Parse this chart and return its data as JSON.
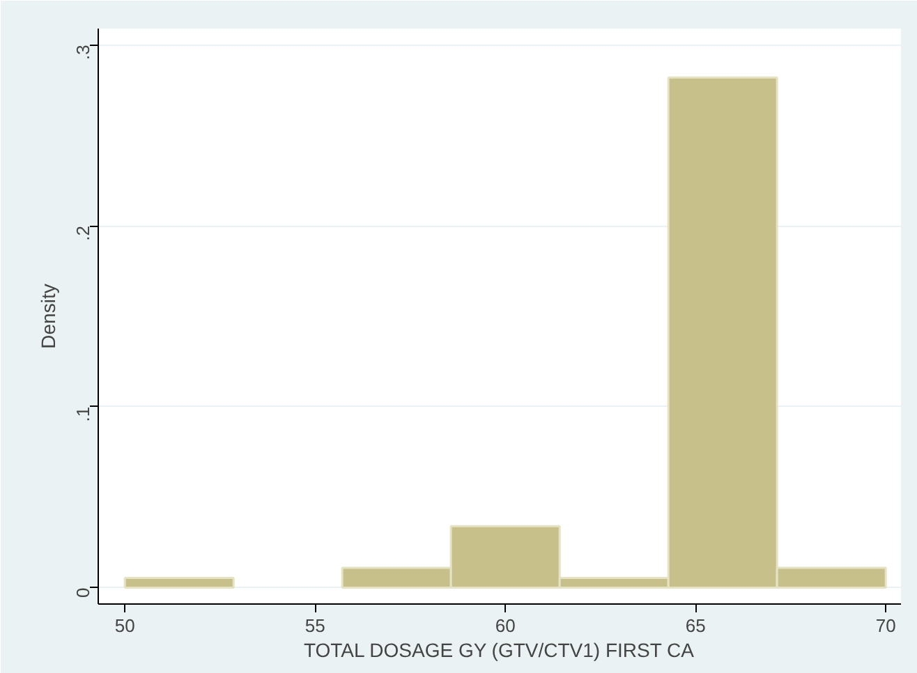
{
  "chart_data": {
    "type": "histogram",
    "xlabel": "TOTAL DOSAGE GY (GTV/CTV1) FIRST CA",
    "ylabel": "Density",
    "bins": [
      50,
      52.857,
      55.714,
      58.571,
      61.429,
      64.286,
      67.143,
      70
    ],
    "values": [
      0.0054,
      0,
      0.011,
      0.034,
      0.0054,
      0.282,
      0.011
    ],
    "color": "#c8c08a",
    "xlim": [
      49.3,
      70.4
    ],
    "ylim": [
      -0.009,
      0.309
    ],
    "xticks": [
      50,
      55,
      60,
      65,
      70
    ],
    "yticks": [
      0,
      {
        "value": 0.1,
        "label": ".1"
      },
      {
        "value": 0.2,
        "label": ".2"
      },
      {
        "value": 0.3,
        "label": ".3"
      }
    ],
    "grid": "y"
  }
}
